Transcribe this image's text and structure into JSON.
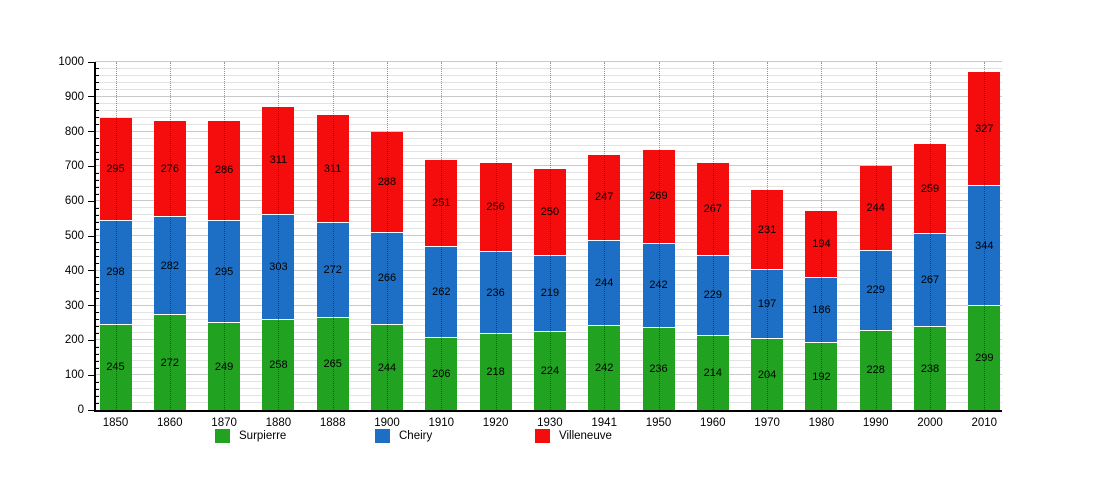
{
  "chart_data": {
    "type": "bar",
    "stacked": true,
    "title": "",
    "xlabel": "",
    "ylabel": "",
    "categories": [
      "1850",
      "1860",
      "1870",
      "1880",
      "1888",
      "1900",
      "1910",
      "1920",
      "1930",
      "1941",
      "1950",
      "1960",
      "1970",
      "1980",
      "1990",
      "2000",
      "2010"
    ],
    "series": [
      {
        "name": "Surpierre",
        "color": "#21a321",
        "values": [
          245,
          272,
          249,
          258,
          265,
          244,
          206,
          218,
          224,
          242,
          236,
          214,
          204,
          192,
          228,
          238,
          299
        ]
      },
      {
        "name": "Cheiry",
        "color": "#1c6fc4",
        "values": [
          298,
          282,
          295,
          303,
          272,
          266,
          262,
          236,
          219,
          244,
          242,
          229,
          197,
          186,
          229,
          267,
          344
        ]
      },
      {
        "name": "Villeneuve",
        "color": "#f50d0d",
        "values": [
          295,
          276,
          286,
          311,
          311,
          288,
          251,
          256,
          250,
          247,
          269,
          267,
          231,
          194,
          244,
          259,
          327
        ]
      }
    ],
    "ylim": [
      0,
      1000
    ],
    "ytick_major": 100,
    "ytick_minor": 20,
    "grid": true,
    "value_labels": true,
    "legend_position": "bottom"
  },
  "colors": {
    "axis": "#000000",
    "grid_minor": "#e3e3e3",
    "grid_major": "#c9c9c9",
    "background": "#ffffff"
  }
}
